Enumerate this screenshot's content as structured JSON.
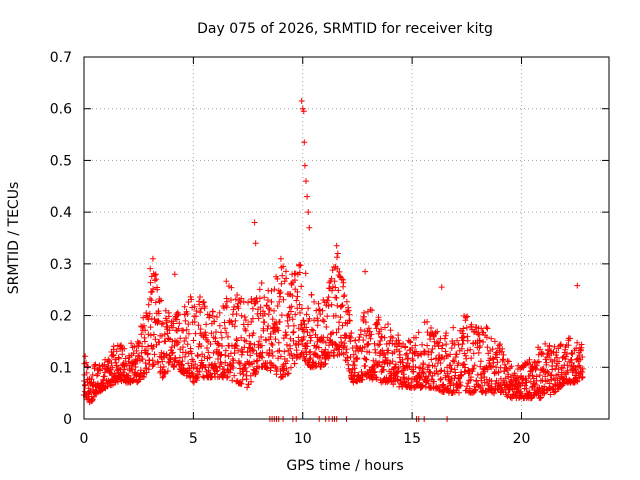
{
  "chart_data": {
    "type": "scatter",
    "title": "Day 075 of 2026, SRMTID for receiver kitg",
    "xlabel": "GPS time / hours",
    "ylabel": "SRMTID / TECUs",
    "xlim": [
      0,
      24
    ],
    "ylim": [
      0,
      0.7
    ],
    "xticks": [
      0,
      5,
      10,
      15,
      20
    ],
    "yticks": [
      0,
      0.1,
      0.2,
      0.3,
      0.4,
      0.5,
      0.6,
      0.7
    ],
    "grid": true,
    "marker": "+",
    "color": "#ff0000",
    "series": [
      {
        "name": "SRMTID",
        "note": "approx. 2 points per 0.02 h window; values estimated from the plot envelope",
        "envelope": [
          [
            0.0,
            0.04,
            0.13
          ],
          [
            0.3,
            0.03,
            0.1
          ],
          [
            0.6,
            0.05,
            0.11
          ],
          [
            1.0,
            0.06,
            0.12
          ],
          [
            1.5,
            0.07,
            0.15
          ],
          [
            2.0,
            0.07,
            0.14
          ],
          [
            2.5,
            0.07,
            0.16
          ],
          [
            2.8,
            0.08,
            0.22
          ],
          [
            3.0,
            0.1,
            0.3
          ],
          [
            3.3,
            0.1,
            0.28
          ],
          [
            3.6,
            0.08,
            0.22
          ],
          [
            4.0,
            0.1,
            0.2
          ],
          [
            4.5,
            0.09,
            0.21
          ],
          [
            5.0,
            0.07,
            0.25
          ],
          [
            5.5,
            0.08,
            0.24
          ],
          [
            6.0,
            0.08,
            0.2
          ],
          [
            6.5,
            0.08,
            0.27
          ],
          [
            7.0,
            0.07,
            0.25
          ],
          [
            7.5,
            0.06,
            0.23
          ],
          [
            8.0,
            0.1,
            0.27
          ],
          [
            8.3,
            0.1,
            0.26
          ],
          [
            9.0,
            0.08,
            0.3
          ],
          [
            9.5,
            0.09,
            0.28
          ],
          [
            9.8,
            0.12,
            0.3
          ],
          [
            10.0,
            0.12,
            0.32
          ],
          [
            10.3,
            0.1,
            0.25
          ],
          [
            10.8,
            0.1,
            0.22
          ],
          [
            11.5,
            0.12,
            0.33
          ],
          [
            12.0,
            0.11,
            0.25
          ],
          [
            12.3,
            0.07,
            0.15
          ],
          [
            13.0,
            0.08,
            0.23
          ],
          [
            13.5,
            0.07,
            0.21
          ],
          [
            14.0,
            0.07,
            0.18
          ],
          [
            14.5,
            0.06,
            0.16
          ],
          [
            15.0,
            0.06,
            0.15
          ],
          [
            15.5,
            0.06,
            0.21
          ],
          [
            16.0,
            0.06,
            0.18
          ],
          [
            16.5,
            0.05,
            0.17
          ],
          [
            17.0,
            0.05,
            0.18
          ],
          [
            17.5,
            0.05,
            0.21
          ],
          [
            18.0,
            0.05,
            0.18
          ],
          [
            18.5,
            0.05,
            0.18
          ],
          [
            19.0,
            0.05,
            0.15
          ],
          [
            19.5,
            0.04,
            0.11
          ],
          [
            20.0,
            0.04,
            0.1
          ],
          [
            20.5,
            0.04,
            0.13
          ],
          [
            21.0,
            0.04,
            0.15
          ],
          [
            21.5,
            0.05,
            0.14
          ],
          [
            22.0,
            0.07,
            0.15
          ],
          [
            22.5,
            0.07,
            0.17
          ],
          [
            22.8,
            0.08,
            0.14
          ]
        ],
        "outliers": [
          [
            3.15,
            0.31
          ],
          [
            4.15,
            0.28
          ],
          [
            7.8,
            0.38
          ],
          [
            7.85,
            0.34
          ],
          [
            9.0,
            0.31
          ],
          [
            9.1,
            0.295
          ],
          [
            9.95,
            0.615
          ],
          [
            10.0,
            0.6
          ],
          [
            10.05,
            0.595
          ],
          [
            10.07,
            0.535
          ],
          [
            10.1,
            0.49
          ],
          [
            10.15,
            0.46
          ],
          [
            10.2,
            0.43
          ],
          [
            10.25,
            0.4
          ],
          [
            10.3,
            0.37
          ],
          [
            11.55,
            0.335
          ],
          [
            11.6,
            0.32
          ],
          [
            12.85,
            0.285
          ],
          [
            16.35,
            0.255
          ],
          [
            22.55,
            0.258
          ]
        ],
        "zero_points": [
          8.5,
          8.6,
          8.7,
          8.8,
          8.9,
          9.1,
          9.55,
          9.7,
          10.75,
          11.05,
          11.2,
          11.35,
          11.45,
          11.55,
          12.0,
          15.2,
          15.3,
          15.55,
          16.6
        ]
      }
    ]
  }
}
